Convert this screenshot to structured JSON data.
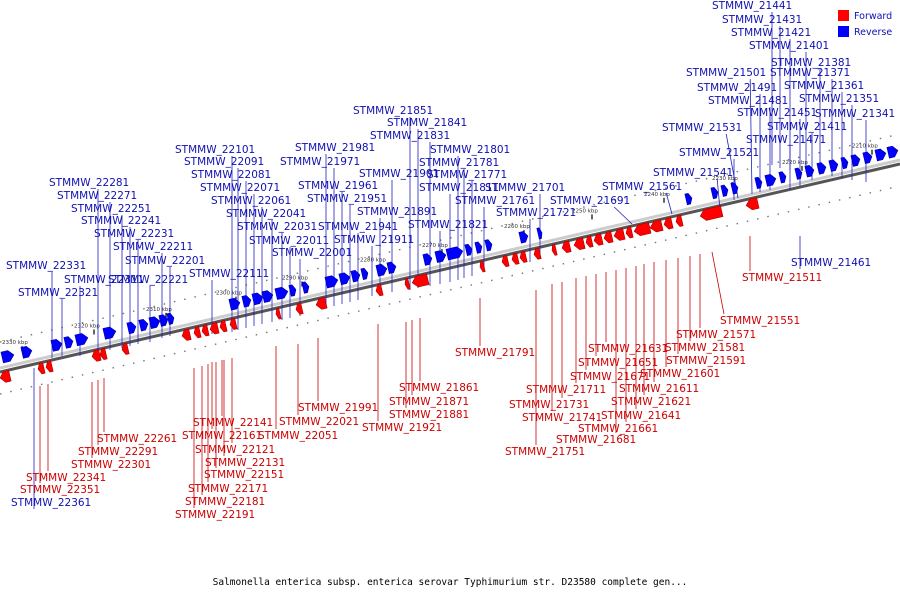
{
  "caption": "Salmonella enterica subsp. enterica serovar Typhimurium str. D23580 complete gen...",
  "legend": [
    {
      "label": "Forward",
      "color": "#ff0000"
    },
    {
      "label": "Reverse",
      "color": "#0000ff"
    }
  ],
  "colors": {
    "forward": "#ff0000",
    "forward_dark": "#aa0000",
    "reverse": "#0000ff",
    "reverse_dark": "#000099",
    "backbone": "#888888"
  },
  "ticks": [
    {
      "label": "2330 kbp"
    },
    {
      "label": "2320 kbp"
    },
    {
      "label": "2310 kbp"
    },
    {
      "label": "2300 kbp"
    },
    {
      "label": "2290 kbp"
    },
    {
      "label": "2280 kbp"
    },
    {
      "label": "2270 kbp"
    },
    {
      "label": "2260 kbp"
    },
    {
      "label": "2250 kbp"
    },
    {
      "label": "2240 kbp"
    },
    {
      "label": "2230 kbp"
    },
    {
      "label": "2220 kbp"
    },
    {
      "label": "2210 kbp"
    }
  ],
  "forward_genes": [
    "STMMW_21511",
    "STMMW_21551",
    "STMMW_21571",
    "STMMW_21581",
    "STMMW_21591",
    "STMMW_21601",
    "STMMW_21611",
    "STMMW_21621",
    "STMMW_21641",
    "STMMW_21661",
    "STMMW_21681",
    "STMMW_21631",
    "STMMW_21651",
    "STMMW_21671",
    "STMMW_21711",
    "STMMW_21731",
    "STMMW_21741",
    "STMMW_21751",
    "STMMW_21791",
    "STMMW_21861",
    "STMMW_21871",
    "STMMW_21881",
    "STMMW_21921",
    "STMMW_21991",
    "STMMW_22021",
    "STMMW_22051",
    "STMMW_22121",
    "STMMW_22131",
    "STMMW_22151",
    "STMMW_22171",
    "STMMW_22181",
    "STMMW_22191",
    "STMMW_22141",
    "STMMW_22161",
    "STMMW_22261",
    "STMMW_22291",
    "STMMW_22301",
    "STMMW_22341",
    "STMMW_22351"
  ],
  "reverse_genes": [
    "STMMW_21441",
    "STMMW_21431",
    "STMMW_21421",
    "STMMW_21401",
    "STMMW_21381",
    "STMMW_21371",
    "STMMW_21361",
    "STMMW_21351",
    "STMMW_21341",
    "STMMW_21411",
    "STMMW_21471",
    "STMMW_21451",
    "STMMW_21481",
    "STMMW_21491",
    "STMMW_21501",
    "STMMW_21531",
    "STMMW_21521",
    "STMMW_21541",
    "STMMW_21561",
    "STMMW_21691",
    "STMMW_21701",
    "STMMW_21721",
    "STMMW_21761",
    "STMMW_21771",
    "STMMW_21781",
    "STMMW_21801",
    "STMMW_21811",
    "STMMW_21821",
    "STMMW_21831",
    "STMMW_21841",
    "STMMW_21851",
    "STMMW_21891",
    "STMMW_21901",
    "STMMW_21911",
    "STMMW_21941",
    "STMMW_21951",
    "STMMW_21961",
    "STMMW_21971",
    "STMMW_21981",
    "STMMW_22001",
    "STMMW_22011",
    "STMMW_22031",
    "STMMW_22041",
    "STMMW_22061",
    "STMMW_22071",
    "STMMW_22081",
    "STMMW_22091",
    "STMMW_22101",
    "STMMW_22111",
    "STMMW_22201",
    "STMMW_22211",
    "STMMW_22221",
    "STMMW_22231",
    "STMMW_22241",
    "STMMW_22251",
    "STMMW_22271",
    "STMMW_22281",
    "STMMW_22311",
    "STMMW_22321",
    "STMMW_22331",
    "STMMW_22361",
    "STMMW_21461"
  ]
}
